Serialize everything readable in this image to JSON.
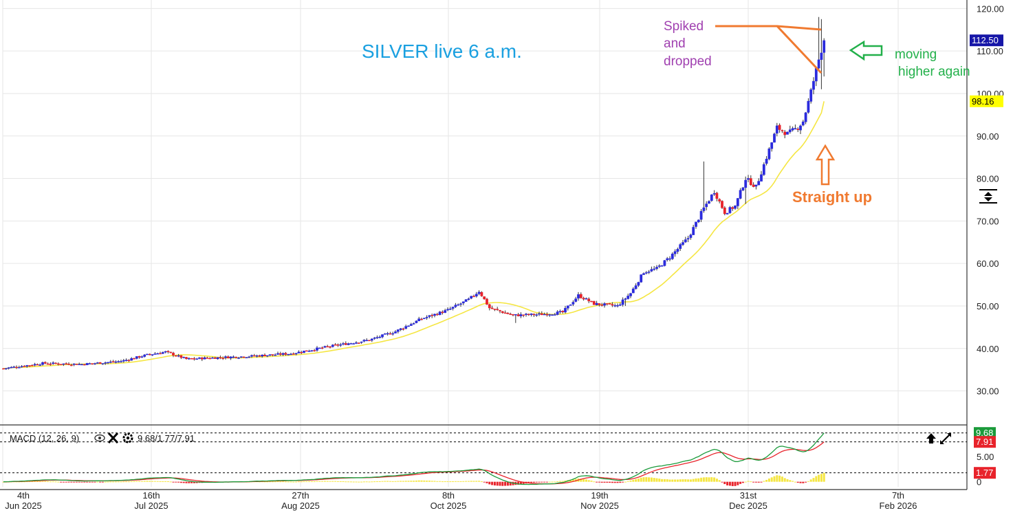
{
  "chart_data": {
    "type": "candlestick",
    "annotations": {
      "title": "SILVER live 6 a.m.",
      "spike_note": [
        "Spiked",
        "and",
        "dropped"
      ],
      "moving_note": [
        "moving",
        "higher again"
      ],
      "straight_up_note": "Straight up"
    },
    "price_axis": {
      "ylim": [
        22,
        122
      ],
      "ticks": [
        "120.00",
        "110.00",
        "100.00",
        "90.00",
        "80.00",
        "70.00",
        "60.00",
        "50.00",
        "40.00",
        "30.00"
      ],
      "tick_values": [
        120,
        110,
        100,
        90,
        80,
        70,
        60,
        50,
        40,
        30
      ]
    },
    "badges": {
      "last_price": "112.50",
      "last_price_value": 112.5,
      "ma_value": "98.16",
      "ma_value_num": 98.16
    },
    "time_axis": {
      "labels": [
        {
          "day": "4th",
          "period": "Jun 2025"
        },
        {
          "day": "16th",
          "period": "Jul 2025"
        },
        {
          "day": "27th",
          "period": "Aug 2025"
        },
        {
          "day": "8th",
          "period": "Oct 2025"
        },
        {
          "day": "19th",
          "period": "Nov 2025"
        },
        {
          "day": "31st",
          "period": "Dec 2025"
        },
        {
          "day": "7th",
          "period": "Feb 2026"
        }
      ]
    },
    "price_keyframes": [
      [
        0,
        35.3
      ],
      [
        15,
        36.5
      ],
      [
        30,
        36.3
      ],
      [
        45,
        37.0
      ],
      [
        55,
        38.5
      ],
      [
        62,
        39.2
      ],
      [
        70,
        37.5
      ],
      [
        80,
        37.8
      ],
      [
        95,
        38.2
      ],
      [
        110,
        38.8
      ],
      [
        125,
        40.5
      ],
      [
        140,
        42.0
      ],
      [
        150,
        44.0
      ],
      [
        160,
        47.0
      ],
      [
        170,
        49.0
      ],
      [
        178,
        51.5
      ],
      [
        182,
        53.5
      ],
      [
        186,
        49.5
      ],
      [
        195,
        47.8
      ],
      [
        205,
        48.0
      ],
      [
        214,
        48.5
      ],
      [
        220,
        52.5
      ],
      [
        226,
        50.5
      ],
      [
        235,
        50.0
      ],
      [
        240,
        53.0
      ],
      [
        245,
        58.0
      ],
      [
        250,
        58.8
      ],
      [
        255,
        61.5
      ],
      [
        262,
        66.0
      ],
      [
        268,
        73.0
      ],
      [
        272,
        77.0
      ],
      [
        276,
        72.0
      ],
      [
        280,
        73.5
      ],
      [
        284,
        80.0
      ],
      [
        288,
        78.0
      ],
      [
        292,
        85.0
      ],
      [
        296,
        92.0
      ],
      [
        300,
        90.5
      ],
      [
        304,
        92.0
      ],
      [
        306,
        93.5
      ],
      [
        308,
        98.0
      ],
      [
        310,
        103.0
      ],
      [
        312,
        108.0
      ],
      [
        314,
        112.5
      ]
    ],
    "macd": {
      "label": "MACD (12, 26, 9)",
      "values_text": "9.68/1.77/7.91",
      "macd_line": 9.68,
      "signal_line": 7.91,
      "histogram": 1.77,
      "ylim": [
        -1,
        11
      ],
      "ticks": [
        "5.00",
        "0"
      ],
      "tick_values": [
        5,
        0
      ],
      "badges": {
        "macd": "9.68",
        "signal": "7.91",
        "hist": "1.77"
      }
    },
    "colors": {
      "up_candle": "#2b2bdd",
      "down_candle": "#e8232b",
      "moving_average": "#f5e642",
      "macd_line": "#1a9a3a",
      "signal_line": "#e8232b",
      "histogram": "#f5e642",
      "title": "#1aa0e0",
      "spike_note": "#a040b0",
      "moving_note": "#22b04a",
      "straight_up": "#f07a30",
      "last_price_badge": "#1616a8",
      "ma_badge": "#ffff00",
      "macd_badge": "#1a9a3a",
      "signal_badge": "#e8232b",
      "hist_badge": "#e8232b"
    }
  }
}
